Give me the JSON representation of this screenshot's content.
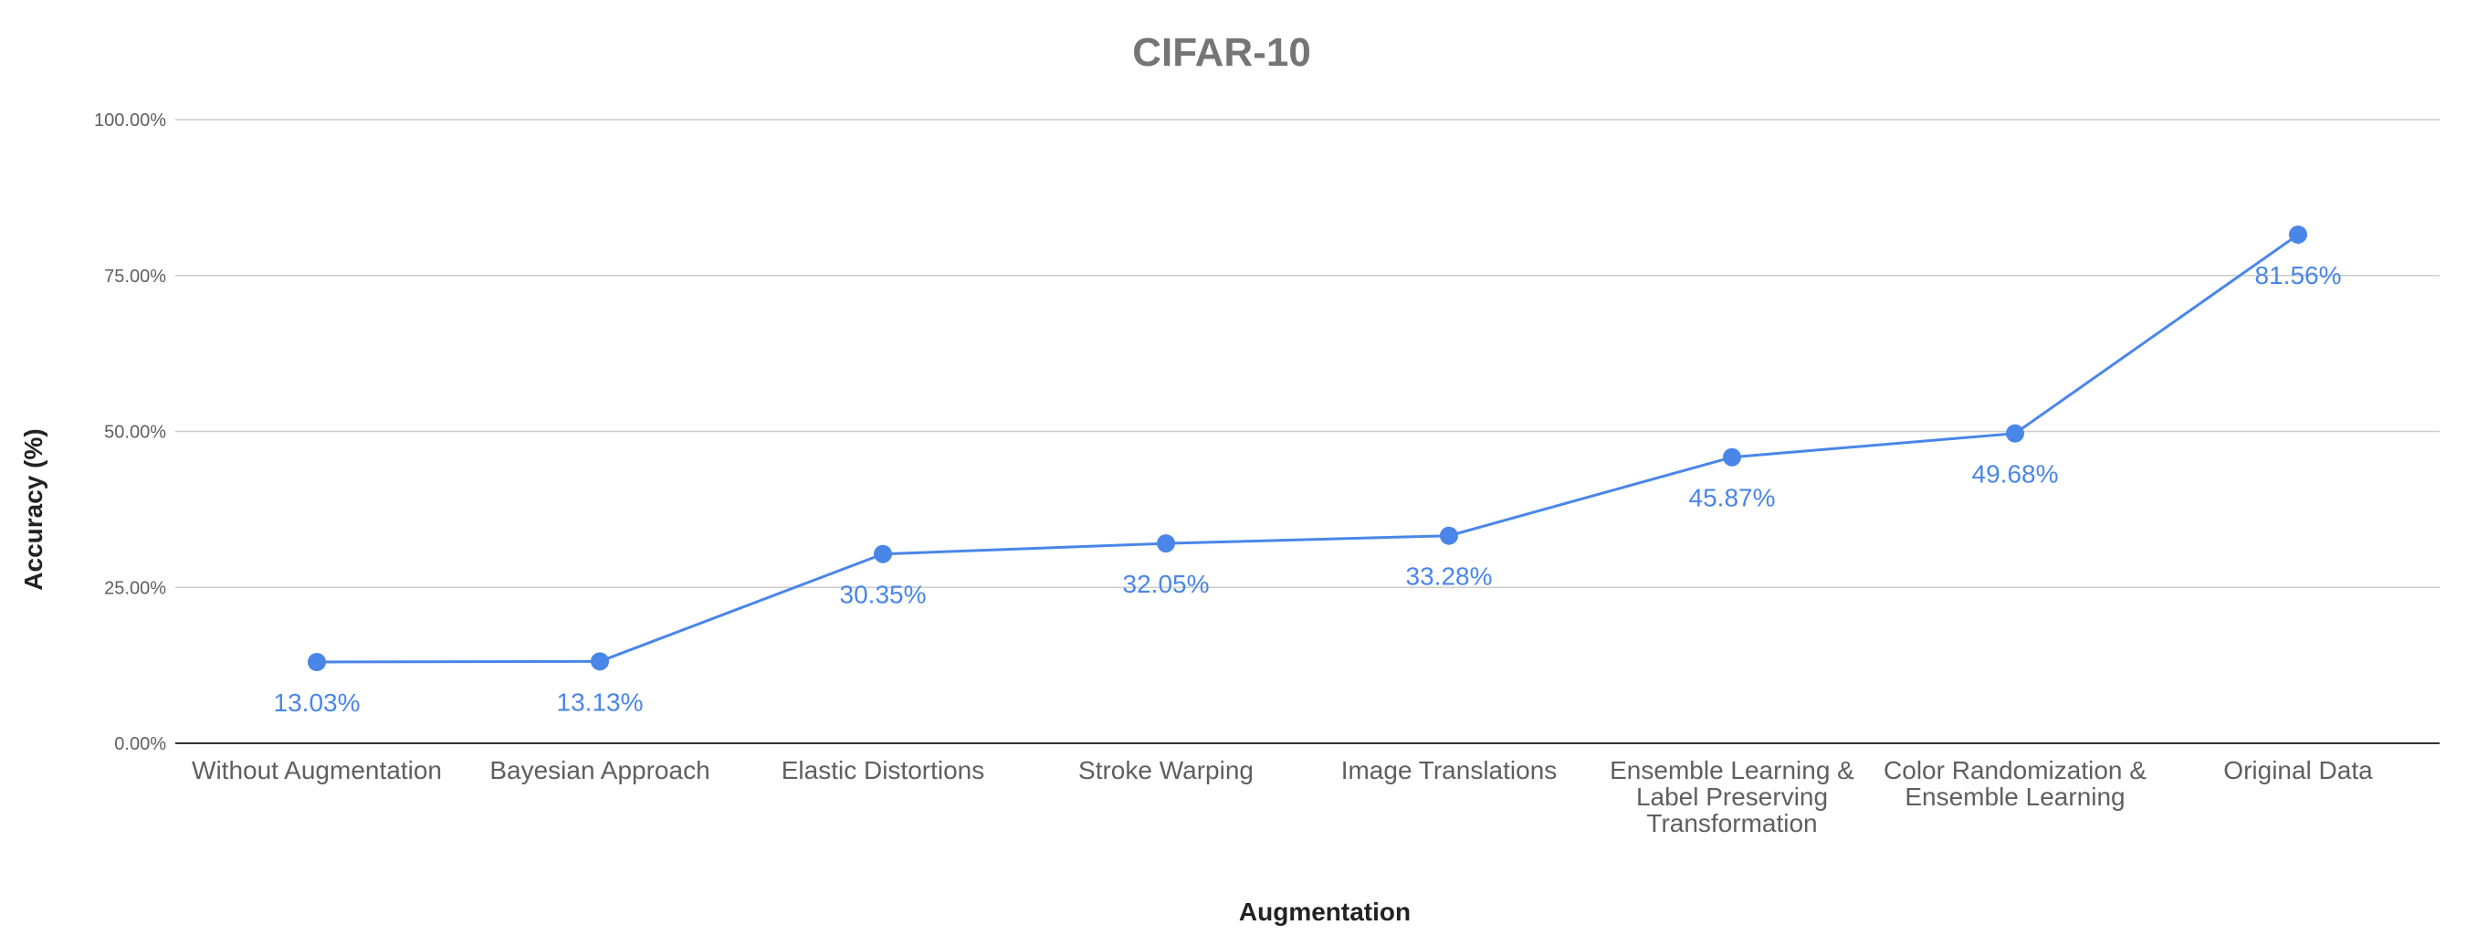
{
  "chart_data": {
    "type": "line",
    "title": "CIFAR-10",
    "xlabel": "Augmentation",
    "ylabel": "Accuracy (%)",
    "ylim": [
      0,
      100
    ],
    "yticks": [
      "0.00%",
      "25.00%",
      "50.00%",
      "75.00%",
      "100.00%"
    ],
    "categories": [
      "Without Augmentation",
      "Bayesian Approach",
      "Elastic Distortions",
      "Stroke Warping",
      "Image Translations",
      "Ensemble Learning & Label Preserving Transformation",
      "Color Randomization & Ensemble Learning",
      "Original Data"
    ],
    "category_lines": [
      [
        "Without Augmentation"
      ],
      [
        "Bayesian Approach"
      ],
      [
        "Elastic Distortions"
      ],
      [
        "Stroke Warping"
      ],
      [
        "Image Translations"
      ],
      [
        "Ensemble Learning &",
        "Label Preserving",
        "Transformation"
      ],
      [
        "Color Randomization &",
        "Ensemble Learning"
      ],
      [
        "Original Data"
      ]
    ],
    "series": [
      {
        "values": [
          13.03,
          13.13,
          30.35,
          32.05,
          33.28,
          45.87,
          49.68,
          81.56
        ],
        "labels": [
          "13.03%",
          "13.13%",
          "30.35%",
          "32.05%",
          "33.28%",
          "45.87%",
          "49.68%",
          "81.56%"
        ],
        "color": "#4a86e8"
      }
    ],
    "grid": true,
    "legend": "none"
  }
}
